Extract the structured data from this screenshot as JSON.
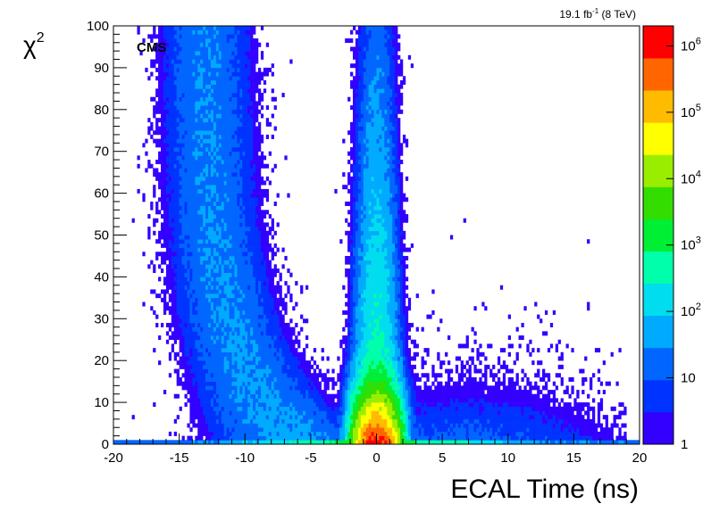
{
  "chart_data": {
    "type": "heatmap",
    "title": "",
    "xlabel": "ECAL Time (ns)",
    "ylabel": "χ",
    "ylabel_superscript": "2",
    "xlim": [
      -20,
      20
    ],
    "ylim": [
      0,
      100
    ],
    "x_ticks": [
      -20,
      -15,
      -10,
      -5,
      0,
      5,
      10,
      15,
      20
    ],
    "y_ticks": [
      0,
      10,
      20,
      30,
      40,
      50,
      60,
      70,
      80,
      90,
      100
    ],
    "z_scale": "log",
    "zlim": [
      1,
      2000000
    ],
    "colorbar_labels": [
      {
        "base": "1",
        "exp": "",
        "value": 1
      },
      {
        "base": "10",
        "exp": "",
        "value": 10
      },
      {
        "base": "10",
        "exp": "2",
        "value": 100
      },
      {
        "base": "10",
        "exp": "3",
        "value": 1000
      },
      {
        "base": "10",
        "exp": "4",
        "value": 10000
      },
      {
        "base": "10",
        "exp": "5",
        "value": 100000
      },
      {
        "base": "10",
        "exp": "6",
        "value": 1000000
      }
    ],
    "annotation_experiment": "CMS",
    "luminosity": {
      "value": "19.1 fb",
      "exp": "-1",
      "suffix": " (8 TeV)"
    },
    "populations": [
      {
        "name": "in-time peak",
        "x_center": 0,
        "peak_count": 2000000
      },
      {
        "name": "early out-of-time band",
        "x_center": -12.5,
        "y_range": [
          5,
          100
        ]
      },
      {
        "name": "late out-of-time tail",
        "x_range": [
          5,
          17
        ],
        "y_range": [
          0,
          20
        ]
      }
    ]
  }
}
